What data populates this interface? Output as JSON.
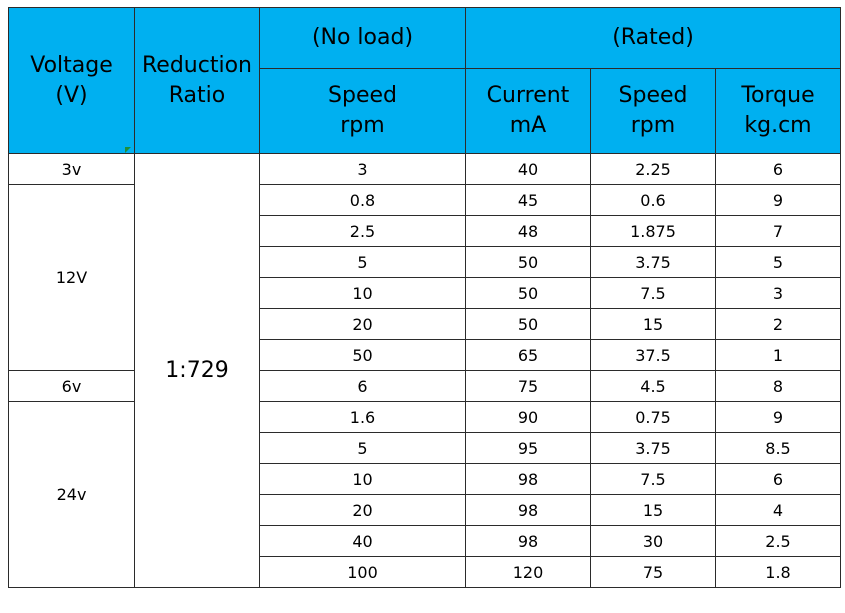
{
  "header": {
    "voltage": [
      "Voltage",
      "(V)"
    ],
    "ratio": [
      "Reduction",
      "Ratio"
    ],
    "no_load": "(No load)",
    "rated": "(Rated)",
    "noload_speed": [
      "Speed",
      "rpm"
    ],
    "current": [
      "Current",
      "mA"
    ],
    "rated_speed": [
      "Speed",
      "rpm"
    ],
    "torque": [
      "Torque",
      "kg.cm"
    ]
  },
  "reduction_ratio": "1:729",
  "voltage_groups": [
    {
      "label": "3v",
      "rows": 1
    },
    {
      "label": "12V",
      "rows": 6
    },
    {
      "label": "6v",
      "rows": 1
    },
    {
      "label": "24v",
      "rows": 6
    }
  ],
  "rows": [
    {
      "noload_speed": "3",
      "current": "40",
      "rated_speed": "2.25",
      "torque": "6"
    },
    {
      "noload_speed": "0.8",
      "current": "45",
      "rated_speed": "0.6",
      "torque": "9"
    },
    {
      "noload_speed": "2.5",
      "current": "48",
      "rated_speed": "1.875",
      "torque": "7"
    },
    {
      "noload_speed": "5",
      "current": "50",
      "rated_speed": "3.75",
      "torque": "5"
    },
    {
      "noload_speed": "10",
      "current": "50",
      "rated_speed": "7.5",
      "torque": "3"
    },
    {
      "noload_speed": "20",
      "current": "50",
      "rated_speed": "15",
      "torque": "2"
    },
    {
      "noload_speed": "50",
      "current": "65",
      "rated_speed": "37.5",
      "torque": "1"
    },
    {
      "noload_speed": "6",
      "current": "75",
      "rated_speed": "4.5",
      "torque": "8"
    },
    {
      "noload_speed": "1.6",
      "current": "90",
      "rated_speed": "0.75",
      "torque": "9"
    },
    {
      "noload_speed": "5",
      "current": "95",
      "rated_speed": "3.75",
      "torque": "8.5"
    },
    {
      "noload_speed": "10",
      "current": "98",
      "rated_speed": "7.5",
      "torque": "6"
    },
    {
      "noload_speed": "20",
      "current": "98",
      "rated_speed": "15",
      "torque": "4"
    },
    {
      "noload_speed": "40",
      "current": "98",
      "rated_speed": "30",
      "torque": "2.5"
    },
    {
      "noload_speed": "100",
      "current": "120",
      "rated_speed": "75",
      "torque": "1.8"
    }
  ],
  "colors": {
    "header_bg": "#00b0f0",
    "grid": "#2b2b2b",
    "cell_bg": "#ffffff"
  }
}
